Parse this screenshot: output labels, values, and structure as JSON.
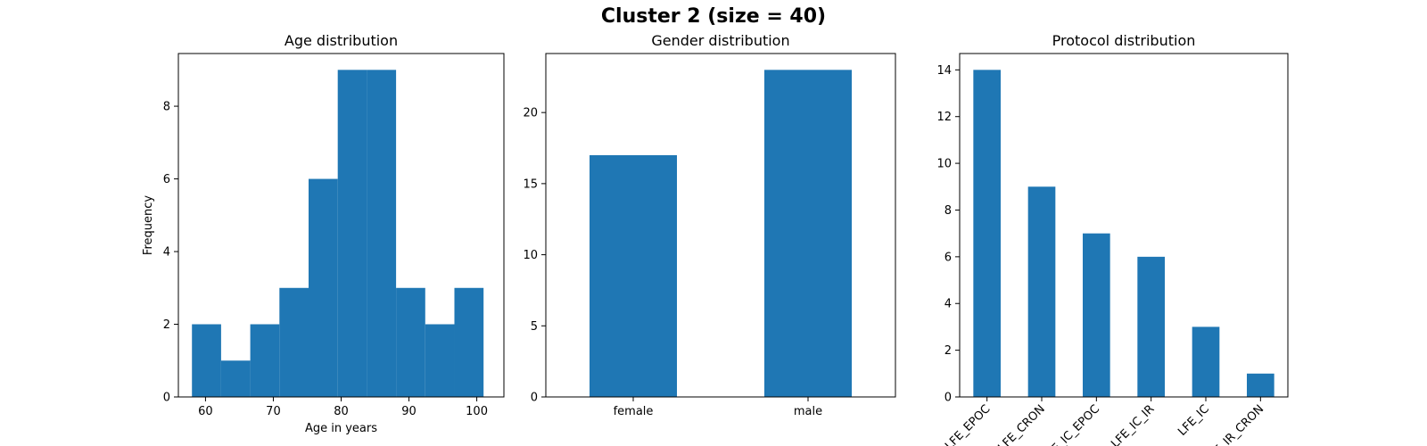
{
  "figure": {
    "suptitle": "Cluster 2 (size = 40)",
    "bar_color": "#1f77b4"
  },
  "chart_data": [
    {
      "type": "bar",
      "subtype": "histogram",
      "title": "Age distribution",
      "xlabel": "Age in years",
      "ylabel": "Frequency",
      "bin_edges": [
        58.0,
        62.3,
        66.6,
        70.9,
        75.2,
        79.5,
        83.8,
        88.1,
        92.4,
        96.7,
        101.0
      ],
      "values": [
        2,
        1,
        2,
        3,
        6,
        9,
        9,
        3,
        2,
        3
      ],
      "xlim": [
        56,
        104
      ],
      "ylim": [
        0,
        9.45
      ],
      "xticks": [
        60,
        70,
        80,
        90,
        100
      ],
      "xtick_labels": [
        "60",
        "70",
        "80",
        "90",
        "100"
      ],
      "yticks": [
        0,
        2,
        4,
        6,
        8
      ],
      "ytick_labels": [
        "0",
        "2",
        "4",
        "6",
        "8"
      ],
      "grid": false
    },
    {
      "type": "bar",
      "title": "Gender distribution",
      "xlabel": "",
      "ylabel": "",
      "categories": [
        "female",
        "male"
      ],
      "values": [
        17,
        23
      ],
      "ylim": [
        0,
        24.15
      ],
      "yticks": [
        0,
        5,
        10,
        15,
        20
      ],
      "ytick_labels": [
        "0",
        "5",
        "10",
        "15",
        "20"
      ],
      "grid": false
    },
    {
      "type": "bar",
      "title": "Protocol distribution",
      "xlabel": "",
      "ylabel": "",
      "categories": [
        "LFE_EPOC",
        "LFE_CRON",
        "LFE_IC_EPOC",
        "LFE_IC_IR",
        "LFE_IC",
        "LFE_IR_CRON"
      ],
      "values": [
        14,
        9,
        7,
        6,
        3,
        1
      ],
      "ylim": [
        0,
        14.7
      ],
      "yticks": [
        0,
        2,
        4,
        6,
        8,
        10,
        12,
        14
      ],
      "ytick_labels": [
        "0",
        "2",
        "4",
        "6",
        "8",
        "10",
        "12",
        "14"
      ],
      "tick_rotation": 45,
      "grid": false
    }
  ]
}
